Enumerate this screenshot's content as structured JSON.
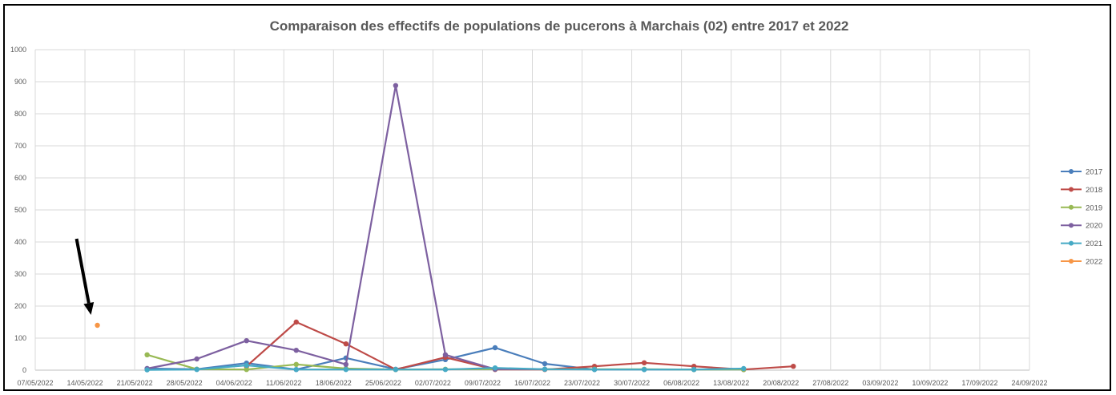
{
  "chart_data": {
    "type": "line",
    "title": "Comparaison des effectifs de populations de pucerons à Marchais (02) entre 2017 et 2022",
    "xlabel": "",
    "ylabel": "",
    "ylim": [
      0,
      1000
    ],
    "yticks": [
      "0",
      "100",
      "200",
      "300",
      "400",
      "500",
      "600",
      "700",
      "800",
      "900",
      "1000"
    ],
    "categories": [
      "07/05/2022",
      "14/05/2022",
      "21/05/2022",
      "28/05/2022",
      "04/06/2022",
      "11/06/2022",
      "18/06/2022",
      "25/06/2022",
      "02/07/2022",
      "09/07/2022",
      "16/07/2022",
      "23/07/2022",
      "30/07/2022",
      "06/08/2022",
      "13/08/2022",
      "20/08/2022",
      "27/08/2022",
      "03/09/2022",
      "10/09/2022",
      "17/09/2022",
      "24/09/2022"
    ],
    "grid": true,
    "legend_position": "right",
    "series": [
      {
        "name": "2017",
        "color": "#4a7ebb",
        "points": [
          [
            2.25,
            5
          ],
          [
            3.25,
            3
          ],
          [
            4.25,
            22
          ],
          [
            5.25,
            2
          ],
          [
            6.25,
            38
          ],
          [
            7.25,
            3
          ],
          [
            8.25,
            33
          ],
          [
            9.25,
            70
          ],
          [
            10.25,
            20
          ],
          [
            11.25,
            2
          ],
          [
            12.25,
            2
          ],
          [
            13.25,
            2
          ],
          [
            14.25,
            2
          ]
        ]
      },
      {
        "name": "2018",
        "color": "#be4b48",
        "points": [
          [
            4.25,
            12
          ],
          [
            5.25,
            150
          ],
          [
            6.25,
            82
          ],
          [
            7.25,
            2
          ],
          [
            8.25,
            40
          ],
          [
            9.25,
            2
          ],
          [
            10.25,
            2
          ],
          [
            11.25,
            12
          ],
          [
            12.25,
            23
          ],
          [
            13.25,
            12
          ],
          [
            14.25,
            2
          ],
          [
            15.25,
            12
          ]
        ]
      },
      {
        "name": "2019",
        "color": "#98b954",
        "points": [
          [
            2.25,
            48
          ],
          [
            3.25,
            3
          ],
          [
            4.25,
            2
          ],
          [
            5.25,
            18
          ],
          [
            6.25,
            5
          ],
          [
            7.25,
            2
          ],
          [
            8.25,
            3
          ],
          [
            9.25,
            3
          ],
          [
            10.25,
            3
          ],
          [
            11.25,
            3
          ],
          [
            12.25,
            3
          ],
          [
            13.25,
            2
          ],
          [
            14.25,
            2
          ]
        ]
      },
      {
        "name": "2020",
        "color": "#7d60a0",
        "points": [
          [
            2.25,
            5
          ],
          [
            3.25,
            35
          ],
          [
            4.25,
            92
          ],
          [
            5.25,
            62
          ],
          [
            6.25,
            18
          ],
          [
            7.25,
            888
          ],
          [
            8.25,
            48
          ],
          [
            9.25,
            3
          ],
          [
            10.25,
            3
          ]
        ]
      },
      {
        "name": "2021",
        "color": "#46aac5",
        "points": [
          [
            2.25,
            1
          ],
          [
            3.25,
            2
          ],
          [
            4.25,
            15
          ],
          [
            5.25,
            2
          ],
          [
            6.25,
            2
          ],
          [
            7.25,
            2
          ],
          [
            8.25,
            2
          ],
          [
            9.25,
            7
          ],
          [
            10.25,
            3
          ],
          [
            11.25,
            2
          ],
          [
            12.25,
            2
          ],
          [
            13.25,
            2
          ],
          [
            14.25,
            5
          ]
        ]
      },
      {
        "name": "2022",
        "color": "#f79646",
        "points": [
          [
            1.25,
            140
          ]
        ]
      }
    ],
    "annotation": {
      "type": "arrow",
      "color": "#000000",
      "points_to": "2022"
    }
  }
}
